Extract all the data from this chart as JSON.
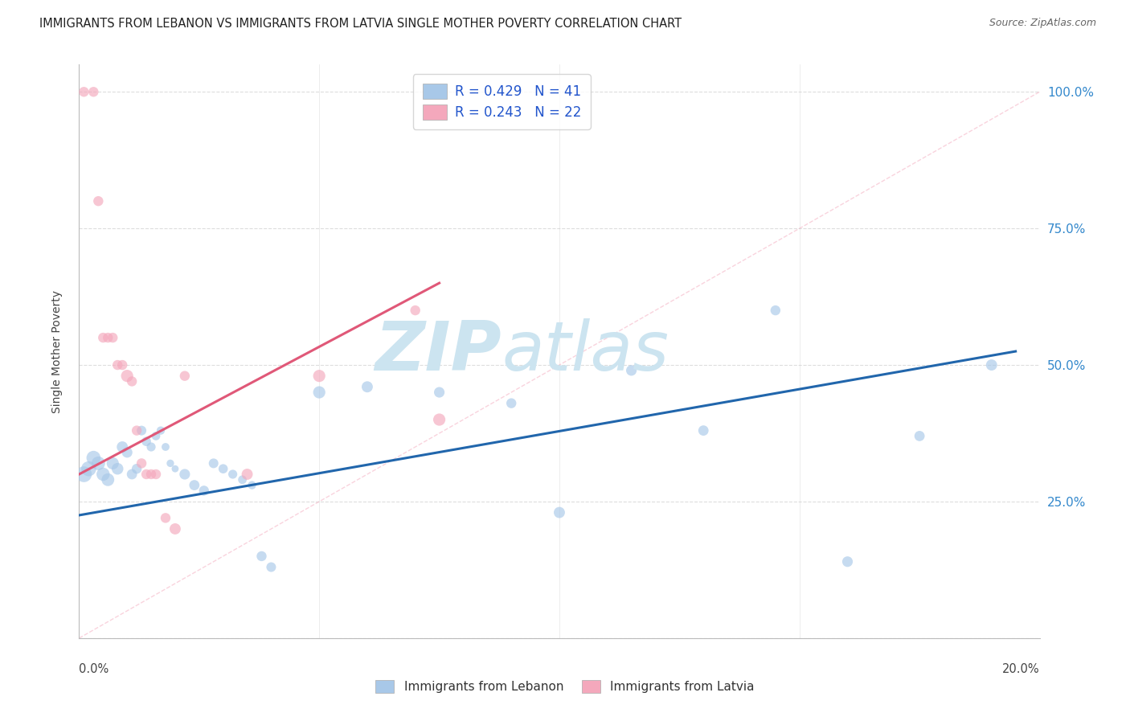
{
  "title": "IMMIGRANTS FROM LEBANON VS IMMIGRANTS FROM LATVIA SINGLE MOTHER POVERTY CORRELATION CHART",
  "source": "Source: ZipAtlas.com",
  "ylabel": "Single Mother Poverty",
  "legend_blue_text": "R = 0.429   N = 41",
  "legend_pink_text": "R = 0.243   N = 22",
  "legend_label_blue": "Immigrants from Lebanon",
  "legend_label_pink": "Immigrants from Latvia",
  "blue_color": "#a8c8e8",
  "pink_color": "#f4a8bc",
  "blue_line_color": "#2166ac",
  "pink_line_color": "#e05878",
  "diag_line_color": "#f4a8bc",
  "xlim": [
    0.0,
    0.2
  ],
  "ylim": [
    0.0,
    1.05
  ],
  "watermark": "ZIPatlas",
  "watermark_color": "#cce4f0",
  "background_color": "#ffffff",
  "grid_color": "#dddddd",
  "blue_x": [
    0.001,
    0.002,
    0.003,
    0.004,
    0.005,
    0.006,
    0.007,
    0.008,
    0.009,
    0.01,
    0.011,
    0.012,
    0.013,
    0.014,
    0.015,
    0.016,
    0.017,
    0.018,
    0.019,
    0.02,
    0.022,
    0.024,
    0.026,
    0.028,
    0.03,
    0.032,
    0.034,
    0.036,
    0.038,
    0.04,
    0.05,
    0.06,
    0.075,
    0.09,
    0.1,
    0.115,
    0.13,
    0.145,
    0.16,
    0.175,
    0.19
  ],
  "blue_y": [
    0.3,
    0.31,
    0.33,
    0.32,
    0.3,
    0.29,
    0.32,
    0.31,
    0.35,
    0.34,
    0.3,
    0.31,
    0.38,
    0.36,
    0.35,
    0.37,
    0.38,
    0.35,
    0.32,
    0.31,
    0.3,
    0.28,
    0.27,
    0.32,
    0.31,
    0.3,
    0.29,
    0.28,
    0.15,
    0.13,
    0.45,
    0.46,
    0.45,
    0.43,
    0.23,
    0.49,
    0.38,
    0.6,
    0.14,
    0.37,
    0.5
  ],
  "blue_sizes": [
    200,
    180,
    160,
    150,
    140,
    130,
    120,
    110,
    100,
    90,
    85,
    80,
    75,
    70,
    65,
    60,
    55,
    50,
    45,
    40,
    90,
    85,
    80,
    75,
    70,
    65,
    60,
    55,
    80,
    75,
    120,
    100,
    90,
    80,
    100,
    90,
    85,
    80,
    90,
    85,
    100
  ],
  "pink_x": [
    0.001,
    0.003,
    0.004,
    0.005,
    0.006,
    0.007,
    0.008,
    0.009,
    0.01,
    0.011,
    0.012,
    0.013,
    0.014,
    0.015,
    0.016,
    0.018,
    0.02,
    0.022,
    0.035,
    0.05,
    0.07,
    0.075
  ],
  "pink_y": [
    1.0,
    1.0,
    0.8,
    0.55,
    0.55,
    0.55,
    0.5,
    0.5,
    0.48,
    0.47,
    0.38,
    0.32,
    0.3,
    0.3,
    0.3,
    0.22,
    0.2,
    0.48,
    0.3,
    0.48,
    0.6,
    0.4
  ],
  "pink_sizes": [
    80,
    80,
    80,
    80,
    80,
    80,
    80,
    80,
    120,
    80,
    80,
    80,
    80,
    80,
    80,
    80,
    100,
    80,
    100,
    120,
    80,
    120
  ],
  "blue_line_x": [
    0.0,
    0.195
  ],
  "blue_line_y": [
    0.225,
    0.525
  ],
  "pink_line_x": [
    0.0,
    0.075
  ],
  "pink_line_y": [
    0.3,
    0.65
  ]
}
